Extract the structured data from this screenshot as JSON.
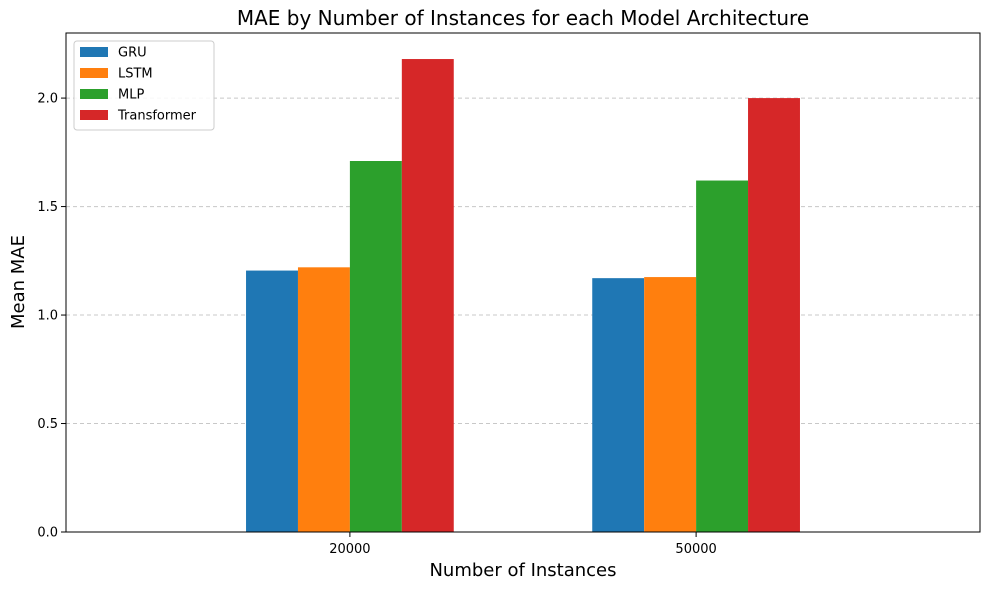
{
  "chart_data": {
    "type": "bar",
    "title": "MAE by Number of Instances for each Model Architecture",
    "xlabel": "Number of Instances",
    "ylabel": "Mean MAE",
    "categories": [
      "20000",
      "50000"
    ],
    "series": [
      {
        "name": "GRU",
        "color": "#1f77b4",
        "values": [
          1.205,
          1.17
        ]
      },
      {
        "name": "LSTM",
        "color": "#ff7f0e",
        "values": [
          1.22,
          1.175
        ]
      },
      {
        "name": "MLP",
        "color": "#2ca02c",
        "values": [
          1.71,
          1.62
        ]
      },
      {
        "name": "Transformer",
        "color": "#d62728",
        "values": [
          2.18,
          2.0
        ]
      }
    ],
    "ylim": [
      0,
      2.3
    ],
    "yticks": [
      "0.0",
      "0.5",
      "1.0",
      "1.5",
      "2.0"
    ],
    "grid": "y-dashed",
    "legend_position": "top-left"
  }
}
